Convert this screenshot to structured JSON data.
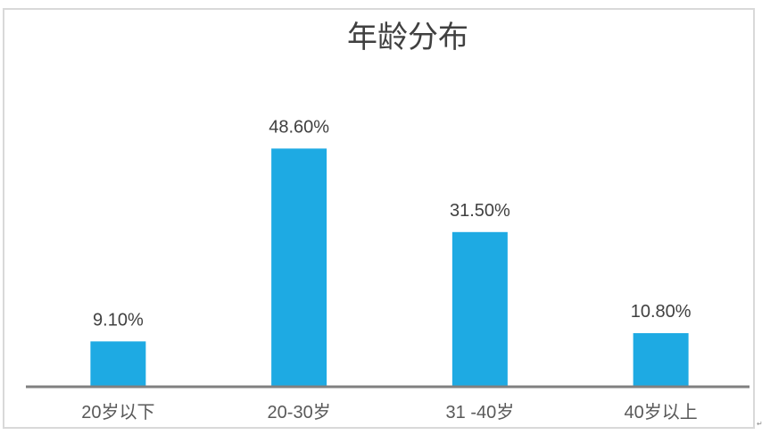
{
  "chart_data": {
    "type": "bar",
    "title": "年龄分布",
    "categories": [
      "20岁以下",
      "20-30岁",
      "31 -40岁",
      "40岁以上"
    ],
    "values": [
      9.1,
      48.6,
      31.5,
      10.8
    ],
    "data_labels": [
      "9.10%",
      "48.60%",
      "31.50%",
      "10.80%"
    ],
    "xlabel": "",
    "ylabel": "",
    "ylim": [
      0,
      60
    ],
    "grid": false,
    "legend": "none",
    "colors": {
      "bar": "#1eaae3",
      "axis": "#808080",
      "text": "#595959"
    }
  }
}
